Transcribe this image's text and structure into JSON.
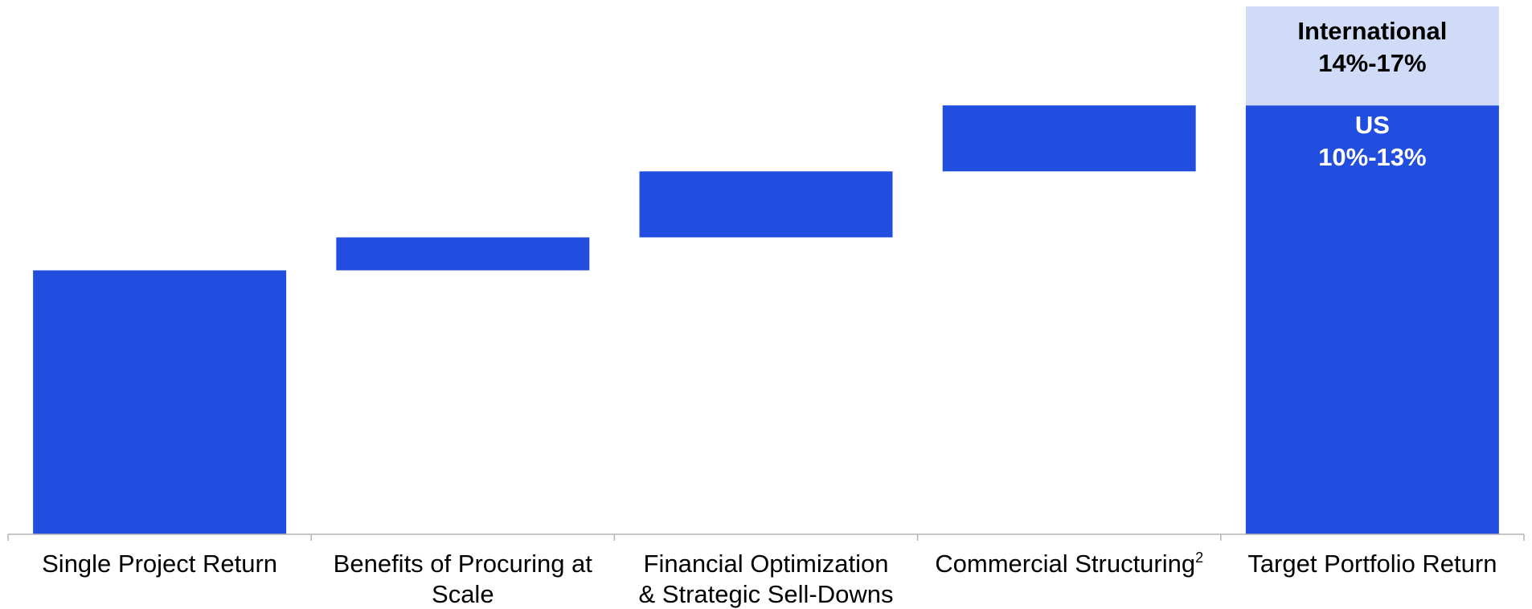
{
  "chart_data": {
    "type": "bar",
    "subtype": "waterfall",
    "categories": [
      [
        "Single Project Return"
      ],
      [
        "Benefits of Procuring at",
        "Scale"
      ],
      [
        "Financial Optimization",
        "& Strategic Sell-Downs"
      ],
      [
        "Commercial Structuring"
      ],
      [
        "Target Portfolio Return"
      ]
    ],
    "category_superscripts": [
      "",
      "",
      "",
      "2",
      ""
    ],
    "steps": [
      {
        "start": 0,
        "end": 8
      },
      {
        "start": 8,
        "end": 9
      },
      {
        "start": 9,
        "end": 11
      },
      {
        "start": 11,
        "end": 13
      }
    ],
    "total": {
      "segments": [
        {
          "start": 0,
          "end": 13,
          "label": [
            "US",
            "10%-13%"
          ]
        },
        {
          "start": 13,
          "end": 16,
          "label": [
            "International",
            "14%-17%"
          ]
        }
      ]
    },
    "ylim": [
      0,
      16
    ],
    "grid": false,
    "colors": {
      "bar": "#224ee0",
      "international": "#d0dbf7",
      "us_label": "#ffffff",
      "international_label": "#000000",
      "axis": "#b3b3b3"
    }
  }
}
